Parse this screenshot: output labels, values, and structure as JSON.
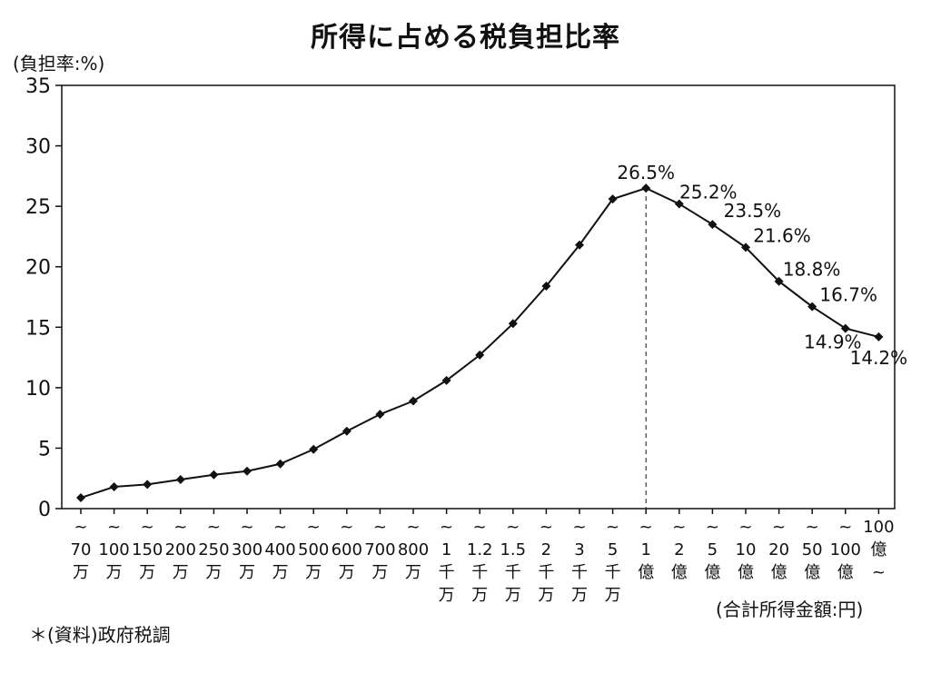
{
  "chart_data": {
    "type": "line",
    "title": "所得に占める税負担比率",
    "ylabel": "(負担率:%)",
    "xlabel": "(合計所得金額:円)",
    "ylim": [
      0,
      35
    ],
    "yticks": [
      0,
      5,
      10,
      15,
      20,
      25,
      30,
      35
    ],
    "grid": false,
    "categories": [
      [
        "~",
        "70",
        "万"
      ],
      [
        "~",
        "100",
        "万"
      ],
      [
        "~",
        "150",
        "万"
      ],
      [
        "~",
        "200",
        "万"
      ],
      [
        "~",
        "250",
        "万"
      ],
      [
        "~",
        "300",
        "万"
      ],
      [
        "~",
        "400",
        "万"
      ],
      [
        "~",
        "500",
        "万"
      ],
      [
        "~",
        "600",
        "万"
      ],
      [
        "~",
        "700",
        "万"
      ],
      [
        "~",
        "800",
        "万"
      ],
      [
        "~",
        "1",
        "千",
        "万"
      ],
      [
        "~",
        "1.2",
        "千",
        "万"
      ],
      [
        "~",
        "1.5",
        "千",
        "万"
      ],
      [
        "~",
        "2",
        "千",
        "万"
      ],
      [
        "~",
        "3",
        "千",
        "万"
      ],
      [
        "~",
        "5",
        "千",
        "万"
      ],
      [
        "~",
        "1",
        "億"
      ],
      [
        "~",
        "2",
        "億"
      ],
      [
        "~",
        "5",
        "億"
      ],
      [
        "~",
        "10",
        "億"
      ],
      [
        "~",
        "20",
        "億"
      ],
      [
        "~",
        "50",
        "億"
      ],
      [
        "~",
        "100",
        "億"
      ],
      [
        "100",
        "億",
        "~"
      ]
    ],
    "series": [
      {
        "values": [
          0.9,
          1.8,
          2.0,
          2.4,
          2.8,
          3.1,
          3.7,
          4.9,
          6.4,
          7.8,
          8.9,
          10.6,
          12.7,
          15.3,
          18.4,
          21.8,
          25.6,
          26.5,
          25.2,
          23.5,
          21.6,
          18.8,
          16.7,
          14.9,
          14.2
        ]
      }
    ],
    "data_labels": [
      {
        "index": 17,
        "text": "26.5%"
      },
      {
        "index": 18,
        "text": "25.2%"
      },
      {
        "index": 19,
        "text": "23.5%"
      },
      {
        "index": 20,
        "text": "21.6%"
      },
      {
        "index": 21,
        "text": "18.8%"
      },
      {
        "index": 22,
        "text": "16.7%"
      },
      {
        "index": 23,
        "text": "14.9%"
      },
      {
        "index": 24,
        "text": "14.2%"
      }
    ],
    "peak_index": 17
  },
  "note": "＊(資料)政府税調",
  "colors": {
    "line": "#111111",
    "marker": "#111111",
    "axis": "#111111"
  }
}
